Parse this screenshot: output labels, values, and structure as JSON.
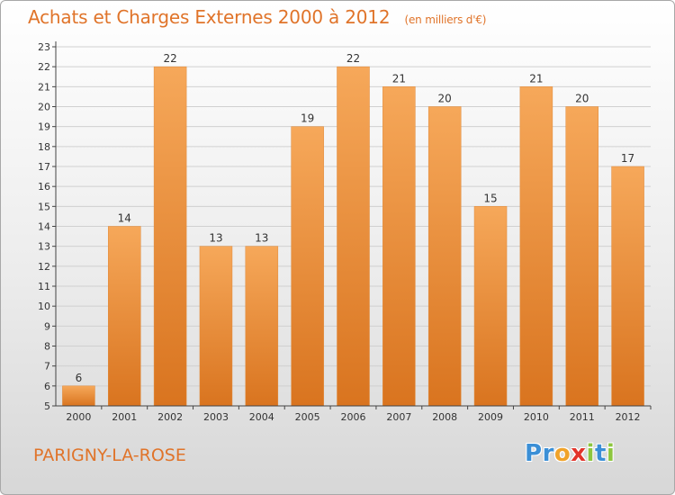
{
  "title": "Achats et Charges Externes 2000 à 2012",
  "unit_note": "(en milliers d'€)",
  "commune": "PARIGNY-LA-ROSE",
  "logo": {
    "text": "Proxiti",
    "letters": [
      {
        "ch": "P",
        "color": "#3b8fd6"
      },
      {
        "ch": "r",
        "color": "#3b8fd6"
      },
      {
        "ch": "o",
        "color": "#f0a32a"
      },
      {
        "ch": "x",
        "color": "#e2342b"
      },
      {
        "ch": "i",
        "color": "#8dc63f"
      },
      {
        "ch": "t",
        "color": "#3b8fd6"
      },
      {
        "ch": "i",
        "color": "#8dc63f"
      }
    ]
  },
  "colors": {
    "title": "#e0742a",
    "bar_light": "#f6a85a",
    "bar_dark": "#d9741f",
    "grid": "#d0d0d0",
    "axis": "#444444"
  },
  "chart_data": {
    "type": "bar",
    "categories": [
      "2000",
      "2001",
      "2002",
      "2003",
      "2004",
      "2005",
      "2006",
      "2007",
      "2008",
      "2009",
      "2010",
      "2011",
      "2012"
    ],
    "values": [
      6,
      14,
      22,
      13,
      13,
      19,
      22,
      21,
      20,
      15,
      21,
      20,
      17
    ],
    "title": "Achats et Charges Externes 2000 à 2012",
    "xlabel": "",
    "ylabel": "",
    "ylim": [
      5,
      23
    ],
    "yticks": [
      5,
      6,
      7,
      8,
      9,
      10,
      11,
      12,
      13,
      14,
      15,
      16,
      17,
      18,
      19,
      20,
      21,
      22,
      23
    ],
    "grid": true,
    "data_labels": true
  }
}
